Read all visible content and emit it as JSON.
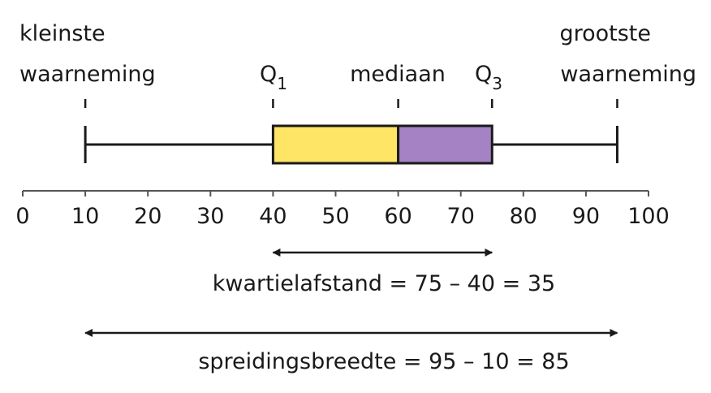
{
  "chart_data": {
    "type": "boxplot",
    "xlim": [
      0,
      100
    ],
    "ticks": [
      "0",
      "10",
      "20",
      "30",
      "40",
      "50",
      "60",
      "70",
      "80",
      "90",
      "100"
    ],
    "tick_values": [
      0,
      10,
      20,
      30,
      40,
      50,
      60,
      70,
      80,
      90,
      100
    ],
    "min": 10,
    "q1": 40,
    "median": 60,
    "q3": 75,
    "max": 95,
    "colors": {
      "lower_box": "#FFE566",
      "upper_box": "#A482C4",
      "line": "#1a1a1a"
    },
    "labels": {
      "min_line1": "kleinste",
      "min_line2": "waarneming",
      "q1": "Q",
      "q1_sub": "1",
      "median": "mediaan",
      "q3": "Q",
      "q3_sub": "3",
      "max_line1": "grootste",
      "max_line2": "waarneming"
    },
    "annotations": {
      "iqr": "kwartielafstand = 75 – 40 = 35",
      "range": "spreidingsbreedte = 95 – 10 = 85"
    }
  }
}
